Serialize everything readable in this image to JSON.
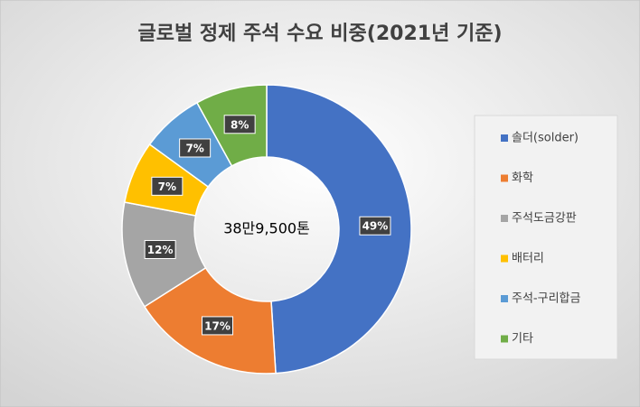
{
  "chart_data": {
    "type": "donut",
    "title": "글로벌 정제 주석 수요 비중(2021년 기준)",
    "center_label": "38만9,500톤",
    "categories": [
      "솔더(solder)",
      "화학",
      "주석도금강판",
      "배터리",
      "주석-구리합금",
      "기타"
    ],
    "values": [
      49,
      17,
      12,
      7,
      7,
      8
    ],
    "value_labels": [
      "49%",
      "17%",
      "12%",
      "7%",
      "7%",
      "8%"
    ],
    "colors": [
      "#4472c4",
      "#ed7d31",
      "#a5a5a5",
      "#ffc000",
      "#5b9bd5",
      "#70ad47"
    ],
    "legend": "right"
  }
}
